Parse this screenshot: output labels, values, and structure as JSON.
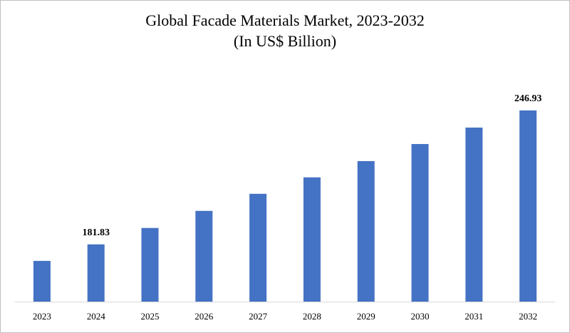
{
  "chart_data": {
    "type": "bar",
    "title": "Global Facade Materials Market, 2023-2032",
    "subtitle": "(In US$ Billion)",
    "categories": [
      "2023",
      "2024",
      "2025",
      "2026",
      "2027",
      "2028",
      "2029",
      "2030",
      "2031",
      "2032"
    ],
    "values": [
      173.8,
      181.83,
      189.8,
      198.1,
      206.4,
      214.4,
      222.3,
      230.6,
      238.6,
      246.93
    ],
    "value_labels": [
      null,
      "181.83",
      null,
      null,
      null,
      null,
      null,
      null,
      null,
      "246.93"
    ],
    "color": "#4472c4",
    "ylim": [
      154,
      250
    ]
  }
}
